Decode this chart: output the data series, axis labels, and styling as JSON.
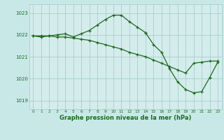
{
  "background_color": "#c8e8e8",
  "plot_bg_color": "#d4ecec",
  "grid_color": "#a0c8c8",
  "line_color": "#1a6b1a",
  "xlabel": "Graphe pression niveau de la mer (hPa)",
  "xlim": [
    -0.5,
    23.5
  ],
  "ylim": [
    1018.6,
    1023.4
  ],
  "yticks": [
    1019,
    1020,
    1021,
    1022,
    1023
  ],
  "xticks": [
    0,
    1,
    2,
    3,
    4,
    5,
    6,
    7,
    8,
    9,
    10,
    11,
    12,
    13,
    14,
    15,
    16,
    17,
    18,
    19,
    20,
    21,
    22,
    23
  ],
  "line1_x": [
    0,
    1,
    2,
    3,
    4,
    5,
    6,
    7,
    8,
    9,
    10,
    11,
    12,
    13,
    14,
    15,
    16,
    17,
    18,
    19,
    20,
    21,
    22,
    23
  ],
  "line1_y": [
    1021.95,
    1021.95,
    1021.95,
    1021.9,
    1021.9,
    1021.85,
    1021.8,
    1021.75,
    1021.65,
    1021.55,
    1021.45,
    1021.35,
    1021.2,
    1021.1,
    1021.0,
    1020.85,
    1020.7,
    1020.55,
    1020.4,
    1020.25,
    1020.7,
    1020.75,
    1020.8,
    1020.8
  ],
  "line2_x": [
    0,
    1,
    2,
    3,
    4,
    5,
    6,
    7,
    8,
    9,
    10,
    11,
    12,
    13,
    14
  ],
  "line2_y": [
    1021.95,
    1021.9,
    1021.95,
    1022.0,
    1022.05,
    1021.9,
    1022.05,
    1022.2,
    1022.45,
    1022.7,
    1022.9,
    1022.9,
    1022.6,
    1022.35,
    1022.1
  ],
  "line3_x": [
    14,
    15,
    16,
    17,
    18,
    19,
    20,
    21,
    22,
    23
  ],
  "line3_y": [
    1022.1,
    1021.55,
    1021.2,
    1020.45,
    1019.85,
    1019.5,
    1019.35,
    1019.4,
    1020.05,
    1020.75
  ]
}
